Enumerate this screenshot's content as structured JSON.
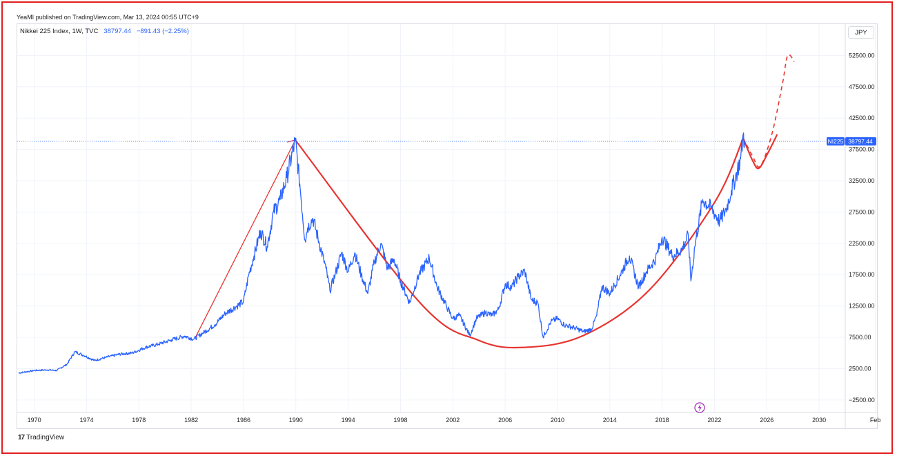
{
  "publisher_line": "YeaMI published on TradingView.com, Mar 13, 2024 00:55 UTC+9",
  "legend": {
    "symbol": "Nikkei 225 Index, 1W, TVC",
    "last": "38797.44",
    "change": "−891.43 (−2.25%)"
  },
  "currency": "JPY",
  "price_tag": {
    "symbol": "NI225",
    "value": "38797.44"
  },
  "brand": "TradingView",
  "icons": {
    "brand_logo": "tradingview-logo",
    "event": "lightning-icon"
  },
  "colors": {
    "price_line": "#2962ff",
    "pattern_line": "#e8342f",
    "price_tag_bg": "#2962ff"
  },
  "chart_data": {
    "type": "line",
    "x_ticks": [
      "1970",
      "1974",
      "1978",
      "1982",
      "1986",
      "1990",
      "1994",
      "1998",
      "2002",
      "2006",
      "2010",
      "2014",
      "2018",
      "2022",
      "2026",
      "2030",
      "Feb"
    ],
    "y_ticks": [
      "52500.00",
      "47500.00",
      "42500.00",
      "37500.00",
      "32500.00",
      "27500.00",
      "22500.00",
      "17500.00",
      "12500.00",
      "7500.00",
      "2500.00",
      "−2500.00"
    ],
    "ylim": [
      -4500,
      57500
    ],
    "xlim": [
      1968.7,
      2032.0
    ],
    "current_price": 38797.44,
    "series": [
      {
        "values": [
          [
            1968.8,
            1800
          ],
          [
            1970.0,
            2200
          ],
          [
            1971.0,
            2300
          ],
          [
            1971.7,
            2200
          ],
          [
            1972.5,
            3200
          ],
          [
            1973.1,
            5200
          ],
          [
            1973.8,
            4600
          ],
          [
            1974.6,
            3800
          ],
          [
            1975.5,
            4300
          ],
          [
            1976.5,
            4800
          ],
          [
            1977.5,
            5000
          ],
          [
            1978.5,
            5900
          ],
          [
            1979.5,
            6400
          ],
          [
            1980.5,
            7100
          ],
          [
            1981.5,
            7700
          ],
          [
            1982.2,
            7200
          ],
          [
            1982.9,
            8200
          ],
          [
            1983.8,
            9500
          ],
          [
            1984.6,
            11300
          ],
          [
            1985.5,
            12500
          ],
          [
            1986.0,
            13200
          ],
          [
            1986.4,
            17500
          ],
          [
            1986.8,
            20500
          ],
          [
            1987.3,
            24500
          ],
          [
            1987.8,
            22000
          ],
          [
            1988.3,
            27500
          ],
          [
            1988.8,
            29500
          ],
          [
            1989.3,
            33000
          ],
          [
            1989.96,
            38900
          ],
          [
            1990.3,
            32000
          ],
          [
            1990.7,
            23000
          ],
          [
            1990.9,
            25000
          ],
          [
            1991.3,
            26500
          ],
          [
            1991.8,
            22500
          ],
          [
            1992.3,
            18500
          ],
          [
            1992.6,
            15000
          ],
          [
            1993.0,
            17500
          ],
          [
            1993.5,
            21000
          ],
          [
            1994.0,
            18000
          ],
          [
            1994.5,
            21000
          ],
          [
            1995.0,
            17500
          ],
          [
            1995.5,
            14500
          ],
          [
            1996.0,
            19500
          ],
          [
            1996.5,
            22500
          ],
          [
            1997.0,
            18500
          ],
          [
            1997.5,
            20000
          ],
          [
            1998.0,
            16500
          ],
          [
            1998.7,
            13000
          ],
          [
            1999.4,
            17500
          ],
          [
            2000.2,
            20200
          ],
          [
            2000.8,
            15500
          ],
          [
            2001.5,
            12500
          ],
          [
            2002.0,
            10500
          ],
          [
            2002.5,
            11000
          ],
          [
            2003.3,
            7800
          ],
          [
            2003.8,
            10500
          ],
          [
            2004.5,
            11500
          ],
          [
            2005.0,
            11000
          ],
          [
            2005.5,
            12000
          ],
          [
            2006.0,
            16000
          ],
          [
            2006.5,
            15500
          ],
          [
            2007.0,
            17200
          ],
          [
            2007.5,
            18100
          ],
          [
            2008.0,
            13500
          ],
          [
            2008.5,
            13000
          ],
          [
            2008.9,
            7500
          ],
          [
            2009.5,
            10000
          ],
          [
            2010.0,
            10500
          ],
          [
            2010.5,
            9500
          ],
          [
            2011.3,
            9000
          ],
          [
            2012.0,
            8400
          ],
          [
            2012.6,
            8800
          ],
          [
            2013.0,
            11000
          ],
          [
            2013.4,
            15600
          ],
          [
            2014.0,
            14500
          ],
          [
            2014.8,
            17500
          ],
          [
            2015.5,
            20500
          ],
          [
            2016.2,
            15500
          ],
          [
            2016.8,
            18000
          ],
          [
            2017.5,
            20000
          ],
          [
            2018.0,
            23500
          ],
          [
            2018.8,
            20500
          ],
          [
            2019.5,
            21500
          ],
          [
            2020.0,
            23800
          ],
          [
            2020.2,
            16500
          ],
          [
            2020.5,
            22000
          ],
          [
            2021.1,
            29500
          ],
          [
            2021.8,
            28000
          ],
          [
            2022.4,
            26000
          ],
          [
            2022.9,
            28000
          ],
          [
            2023.3,
            31000
          ],
          [
            2023.6,
            33000
          ],
          [
            2024.0,
            36000
          ],
          [
            2024.2,
            39900
          ],
          [
            2024.3,
            38800
          ]
        ]
      }
    ],
    "pattern": {
      "rise_line": [
        [
          1982.3,
          7400
        ],
        [
          1989.96,
          39000
        ]
      ],
      "cup_points": [
        [
          1989.96,
          39000
        ],
        [
          1999.5,
          13000
        ],
        [
          2004.0,
          7000
        ],
        [
          2007.5,
          5900
        ],
        [
          2012.0,
          7800
        ],
        [
          2017.0,
          15000
        ],
        [
          2022.0,
          29000
        ],
        [
          2024.2,
          39300
        ]
      ],
      "handle_points": [
        [
          2024.2,
          39300
        ],
        [
          2024.9,
          35800
        ],
        [
          2025.4,
          34500
        ],
        [
          2026.1,
          37000
        ],
        [
          2026.8,
          39900
        ]
      ],
      "projection_points": [
        [
          2024.2,
          39300
        ],
        [
          2024.9,
          36500
        ],
        [
          2025.5,
          34800
        ],
        [
          2026.4,
          40000
        ],
        [
          2027.2,
          48000
        ],
        [
          2027.6,
          52500
        ],
        [
          2028.1,
          51500
        ]
      ]
    }
  }
}
